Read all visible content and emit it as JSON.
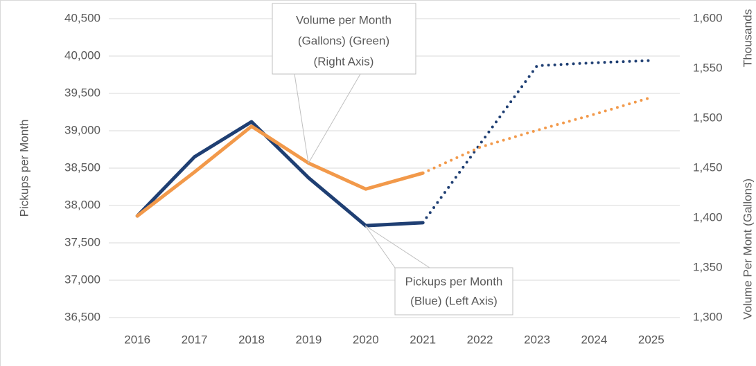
{
  "chart_data": {
    "type": "line",
    "categories": [
      "2016",
      "2017",
      "2018",
      "2019",
      "2020",
      "2021",
      "2022",
      "2023",
      "2024",
      "2025"
    ],
    "series": [
      {
        "color": "#1f3f73",
        "axis": "y",
        "style": "solid",
        "values": [
          37860,
          38650,
          39120,
          38370,
          37730,
          37770,
          null,
          null,
          null,
          null
        ]
      },
      {
        "color": "#1f3f73",
        "axis": "y",
        "style": "dotted",
        "values": [
          null,
          null,
          null,
          null,
          null,
          37770,
          38820,
          39870,
          39910,
          39940
        ]
      },
      {
        "color": "#f2994a",
        "axis": "y2",
        "style": "solid",
        "values": [
          1402,
          1446,
          1492,
          1455,
          1429,
          1445,
          null,
          null,
          null,
          null
        ]
      },
      {
        "color": "#f2994a",
        "axis": "y2",
        "style": "dotted",
        "values": [
          null,
          null,
          null,
          null,
          null,
          1445,
          1471,
          1488,
          1504,
          1521
        ]
      }
    ],
    "ylabel": "Pickups per Month",
    "y2label": "Volume Per Mont (Gallons)",
    "y2unit": "Thousands",
    "ylim": [
      36500,
      40500
    ],
    "yticks": [
      {
        "value": 36500,
        "label": "36,500"
      },
      {
        "value": 37000,
        "label": "37,000"
      },
      {
        "value": 37500,
        "label": "37,500"
      },
      {
        "value": 38000,
        "label": "38,000"
      },
      {
        "value": 38500,
        "label": "38,500"
      },
      {
        "value": 39000,
        "label": "39,000"
      },
      {
        "value": 39500,
        "label": "39,500"
      },
      {
        "value": 40000,
        "label": "40,000"
      },
      {
        "value": 40500,
        "label": "40,500"
      }
    ],
    "y2lim": [
      1300,
      1600
    ],
    "y2ticks": [
      {
        "value": 1300,
        "label": "1,300"
      },
      {
        "value": 1350,
        "label": "1,350"
      },
      {
        "value": 1400,
        "label": "1,400"
      },
      {
        "value": 1450,
        "label": "1,450"
      },
      {
        "value": 1500,
        "label": "1,500"
      },
      {
        "value": 1550,
        "label": "1,550"
      },
      {
        "value": 1600,
        "label": "1,600"
      }
    ],
    "grid": true,
    "annotations": [
      {
        "lines": [
          "Volume per Month",
          "(Gallons) (Green)",
          "(Right Axis)"
        ]
      },
      {
        "lines": [
          "Pickups per Month",
          "(Blue) (Left Axis)"
        ]
      }
    ]
  }
}
